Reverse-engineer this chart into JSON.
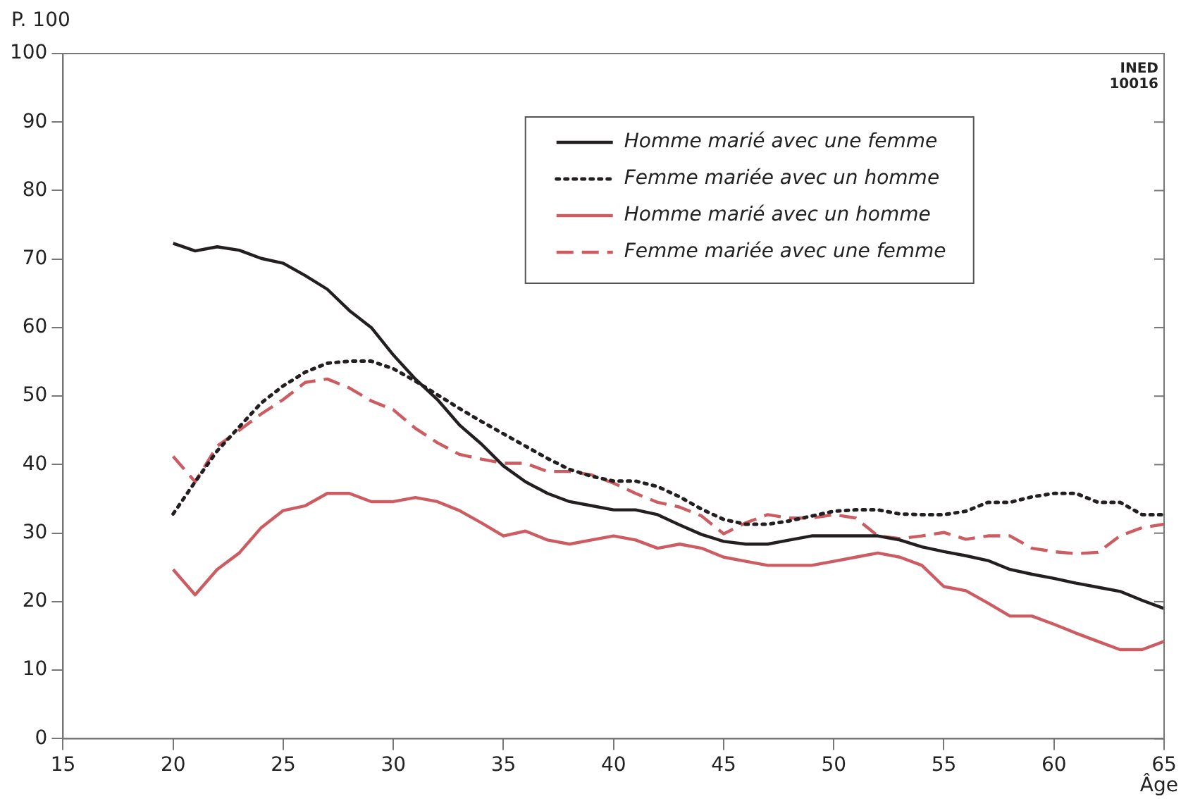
{
  "chart_data": {
    "type": "line",
    "xlabel": "Âge",
    "ylabel": "P. 100",
    "x": [
      20,
      21,
      22,
      23,
      24,
      25,
      26,
      27,
      28,
      29,
      30,
      31,
      32,
      33,
      34,
      35,
      36,
      37,
      38,
      39,
      40,
      41,
      42,
      43,
      44,
      45,
      46,
      47,
      48,
      49,
      50,
      51,
      52,
      53,
      54,
      55,
      56,
      57,
      58,
      59,
      60,
      61,
      62,
      63,
      64,
      65
    ],
    "series": [
      {
        "name": "Homme marié avec une femme",
        "color": "#231f20",
        "line_style": "solid",
        "values": [
          72.3,
          71.2,
          71.8,
          71.3,
          70.1,
          69.4,
          67.6,
          65.6,
          62.5,
          60,
          56,
          52.5,
          49.5,
          45.8,
          43,
          39.8,
          37.5,
          35.8,
          34.6,
          34,
          33.4,
          33.4,
          32.7,
          31.2,
          29.8,
          28.8,
          28.4,
          28.4,
          29,
          29.6,
          29.6,
          29.6,
          29.6,
          29,
          28,
          27.3,
          26.7,
          26,
          24.7,
          24,
          23.4,
          22.7,
          22.1,
          21.5,
          20.2,
          19
        ]
      },
      {
        "name": "Femme mariée avec un homme",
        "color": "#231f20",
        "line_style": "dotted",
        "values": [
          32.8,
          37.5,
          42,
          45.5,
          49,
          51.5,
          53.5,
          54.8,
          55.1,
          55.1,
          54,
          52.2,
          50.2,
          48.2,
          46.3,
          44.5,
          42.7,
          40.9,
          39.3,
          38.3,
          37.6,
          37.6,
          36.8,
          35.3,
          33.5,
          32,
          31.3,
          31.3,
          31.8,
          32.5,
          33.2,
          33.4,
          33.4,
          32.8,
          32.7,
          32.7,
          33.2,
          34.5,
          34.5,
          35.3,
          35.8,
          35.8,
          34.5,
          34.5,
          32.7,
          32.7
        ]
      },
      {
        "name": "Homme marié avec un homme",
        "color": "#cd5c62",
        "line_style": "solid",
        "values": [
          24.7,
          21,
          24.7,
          27.1,
          30.8,
          33.3,
          34,
          35.8,
          35.8,
          34.6,
          34.6,
          35.2,
          34.6,
          33.3,
          31.5,
          29.6,
          30.3,
          29,
          28.4,
          29,
          29.6,
          29,
          27.8,
          28.4,
          27.8,
          26.5,
          25.9,
          25.3,
          25.3,
          25.3,
          25.9,
          26.5,
          27.1,
          26.5,
          25.3,
          22.2,
          21.6,
          19.8,
          17.9,
          17.9,
          16.7,
          15.4,
          14.2,
          13,
          13,
          14.2
        ]
      },
      {
        "name": "Femme mariée avec une femme",
        "color": "#cd5c62",
        "line_style": "dashed",
        "values": [
          41.2,
          37.5,
          42.7,
          45,
          47.4,
          49.5,
          52,
          52.5,
          51.2,
          49.3,
          48,
          45.3,
          43.2,
          41.5,
          40.8,
          40.2,
          40.2,
          39,
          39,
          38.5,
          37.3,
          35.8,
          34.5,
          33.8,
          32.5,
          29.9,
          31.5,
          32.7,
          32.2,
          32.2,
          32.7,
          32.2,
          29.6,
          29.2,
          29.6,
          30.1,
          29.1,
          29.6,
          29.6,
          27.8,
          27.3,
          27,
          27.2,
          29.6,
          30.8,
          31.3
        ]
      }
    ],
    "xlim": [
      15,
      65
    ],
    "xticks": [
      15,
      20,
      25,
      30,
      35,
      40,
      45,
      50,
      55,
      60,
      65
    ],
    "ylim": [
      0,
      100
    ],
    "yticks": [
      0,
      10,
      20,
      30,
      40,
      50,
      60,
      70,
      80,
      90,
      100
    ],
    "grid": false,
    "legend": "top",
    "marker": "none",
    "annotations": [
      "INED",
      "10016"
    ]
  }
}
